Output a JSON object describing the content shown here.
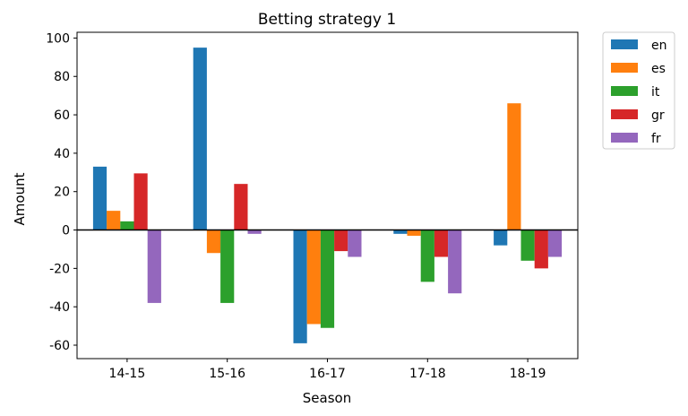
{
  "chart_data": {
    "type": "bar",
    "title": "Betting strategy 1",
    "xlabel": "Season",
    "ylabel": "Amount",
    "categories": [
      "14-15",
      "15-16",
      "16-17",
      "17-18",
      "18-19"
    ],
    "ylim": [
      -67,
      103
    ],
    "yticks": [
      -60,
      -40,
      -20,
      0,
      20,
      40,
      60,
      80,
      100
    ],
    "legend_position": "outside-top-right",
    "grid": false,
    "zero_line": true,
    "series": [
      {
        "name": "en",
        "color": "#1f77b4",
        "values": [
          33,
          95,
          -59,
          -2,
          -8
        ]
      },
      {
        "name": "es",
        "color": "#ff7f0e",
        "values": [
          10,
          -12,
          -49,
          -3,
          66
        ]
      },
      {
        "name": "it",
        "color": "#2ca02c",
        "values": [
          4.5,
          -38,
          -51,
          -27,
          -16
        ]
      },
      {
        "name": "gr",
        "color": "#d62728",
        "values": [
          29.5,
          24,
          -11,
          -14,
          -20
        ]
      },
      {
        "name": "fr",
        "color": "#9467bd",
        "values": [
          -38,
          -2,
          -14,
          -33,
          -14
        ]
      }
    ]
  }
}
